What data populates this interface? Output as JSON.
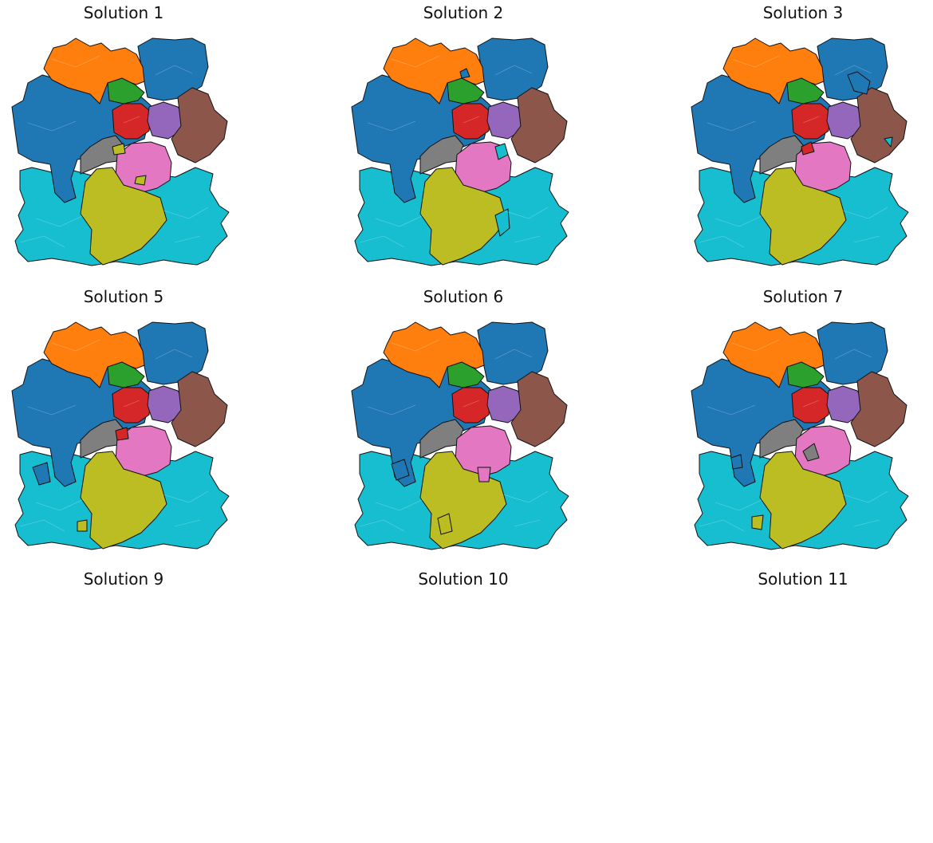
{
  "panels": [
    {
      "title": "Solution 1"
    },
    {
      "title": "Solution 2"
    },
    {
      "title": "Solution 3"
    },
    {
      "title": "Solution 5"
    },
    {
      "title": "Solution 6"
    },
    {
      "title": "Solution 7"
    },
    {
      "title": "Solution 9"
    },
    {
      "title": "Solution 10"
    },
    {
      "title": "Solution 11"
    }
  ],
  "region_colors": {
    "orange": "#ff7f0e",
    "blue": "#1f77b4",
    "green": "#2ca02c",
    "red": "#d62728",
    "purple": "#9467bd",
    "brown": "#8c564b",
    "gray": "#7f7f7f",
    "pink": "#e377c2",
    "olive": "#bcbd22",
    "cyan": "#17becf"
  }
}
